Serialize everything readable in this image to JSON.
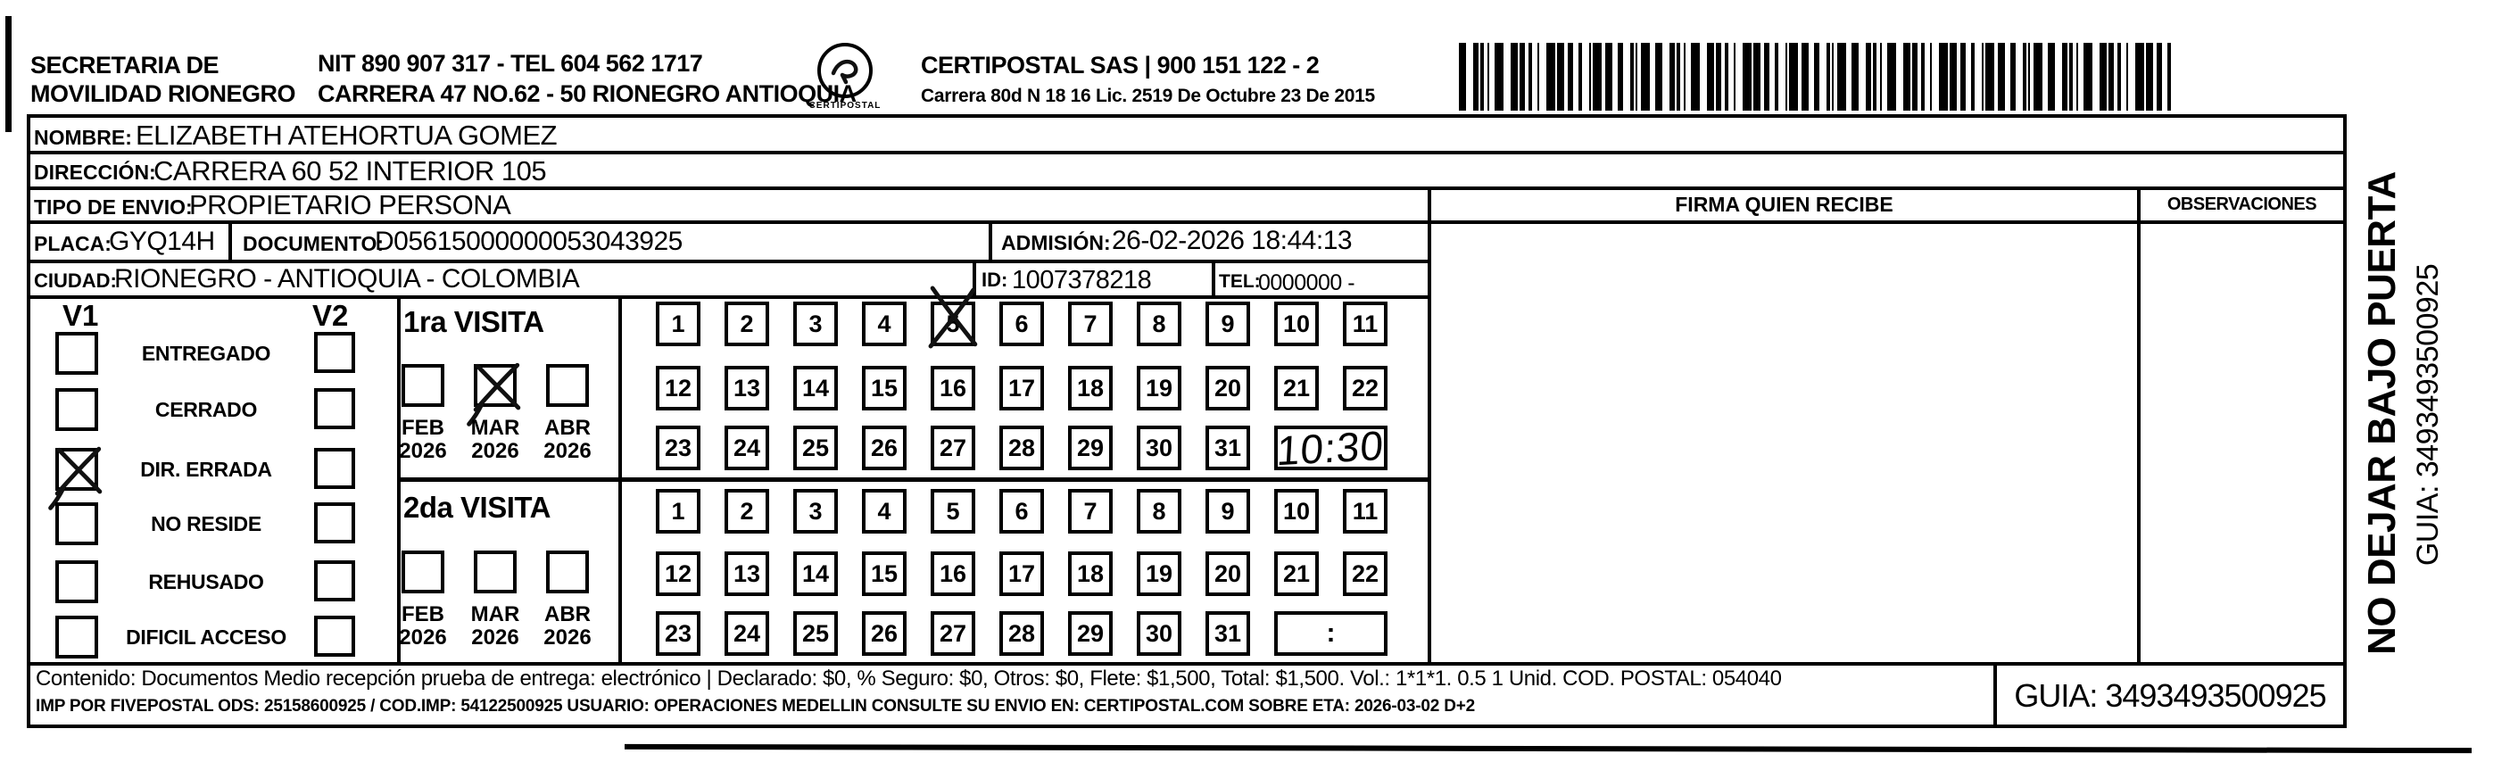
{
  "header": {
    "org_line1": "SECRETARIA DE",
    "org_line2": "MOVILIDAD RIONEGRO",
    "nit_line": "NIT 890 907 317 - TEL 604 562 1717",
    "address_line": "CARRERA 47 NO.62 - 50 RIONEGRO ANTIOQUIA",
    "logo_text": "CERTIPOSTAL",
    "company_line": "CERTIPOSTAL SAS | 900 151 122 - 2",
    "license_line": "Carrera 80d N 18 16  Lic. 2519 De Octubre 23 De 2015"
  },
  "shipment": {
    "nombre_label": "NOMBRE:",
    "nombre": "ELIZABETH ATEHORTUA GOMEZ",
    "direccion_label": "DIRECCIÓN:",
    "direccion": "CARRERA 60 52 INTERIOR 105",
    "tipo_envio_label": "TIPO DE ENVIO:",
    "tipo_envio": "PROPIETARIO PERSONA",
    "placa_label": "PLACA:",
    "placa": "GYQ14H",
    "documento_label": "DOCUMENTO:",
    "documento": "D05615000000053043925",
    "admision_label": "ADMISIÓN:",
    "admision": "26-02-2026 18:44:13",
    "ciudad_label": "CIUDAD:",
    "ciudad": "RIONEGRO - ANTIOQUIA - COLOMBIA",
    "id_label": "ID:",
    "id": "1007378218",
    "tel_label": "TEL:",
    "tel": "0000000 -"
  },
  "signature": {
    "firma_header": "FIRMA QUIEN RECIBE",
    "observaciones_header": "OBSERVACIONES"
  },
  "visits": {
    "v1_label": "V1",
    "v2_label": "V2",
    "statuses": [
      {
        "label": "ENTREGADO",
        "v1": false,
        "v2": false
      },
      {
        "label": "CERRADO",
        "v1": false,
        "v2": false
      },
      {
        "label": "DIR. ERRADA",
        "v1": true,
        "v2": false
      },
      {
        "label": "NO RESIDE",
        "v1": false,
        "v2": false
      },
      {
        "label": "REHUSADO",
        "v1": false,
        "v2": false
      },
      {
        "label": "DIFICIL ACCESO",
        "v1": false,
        "v2": false
      }
    ],
    "visit1": {
      "title": "1ra VISITA",
      "months": [
        {
          "month": "FEB",
          "year": "2026",
          "checked": false
        },
        {
          "month": "MAR",
          "year": "2026",
          "checked": true
        },
        {
          "month": "ABR",
          "year": "2026",
          "checked": false
        }
      ],
      "days": [
        1,
        2,
        3,
        4,
        5,
        6,
        7,
        8,
        9,
        10,
        11,
        12,
        13,
        14,
        15,
        16,
        17,
        18,
        19,
        20,
        21,
        22,
        23,
        24,
        25,
        26,
        27,
        28,
        29,
        30,
        31
      ],
      "crossed_day": 5,
      "handwritten_time": "10:30"
    },
    "visit2": {
      "title": "2da VISITA",
      "months": [
        {
          "month": "FEB",
          "year": "2026",
          "checked": false
        },
        {
          "month": "MAR",
          "year": "2026",
          "checked": false
        },
        {
          "month": "ABR",
          "year": "2026",
          "checked": false
        }
      ],
      "days": [
        1,
        2,
        3,
        4,
        5,
        6,
        7,
        8,
        9,
        10,
        11,
        12,
        13,
        14,
        15,
        16,
        17,
        18,
        19,
        20,
        21,
        22,
        23,
        24,
        25,
        26,
        27,
        28,
        29,
        30,
        31
      ],
      "crossed_day": null,
      "time_placeholder": ":"
    }
  },
  "side_note": {
    "warning": "NO DEJAR BAJO PUERTA",
    "guia": "GUIA: 3493493500925"
  },
  "footer": {
    "line1": "Contenido: Documentos Medio recepción prueba de entrega: electrónico | Declarado: $0, % Seguro: $0, Otros: $0, Flete: $1,500, Total: $1,500. Vol.: 1*1*1. 0.5 1 Unid. COD. POSTAL: 054040",
    "line2": "IMP POR FIVEPOSTAL ODS: 25158600925 / COD.IMP: 54122500925 USUARIO: OPERACIONES MEDELLIN CONSULTE SU ENVIO EN: CERTIPOSTAL.COM SOBRE ETA: 2026-03-02 D+2",
    "guia": "GUIA: 3493493500925"
  }
}
